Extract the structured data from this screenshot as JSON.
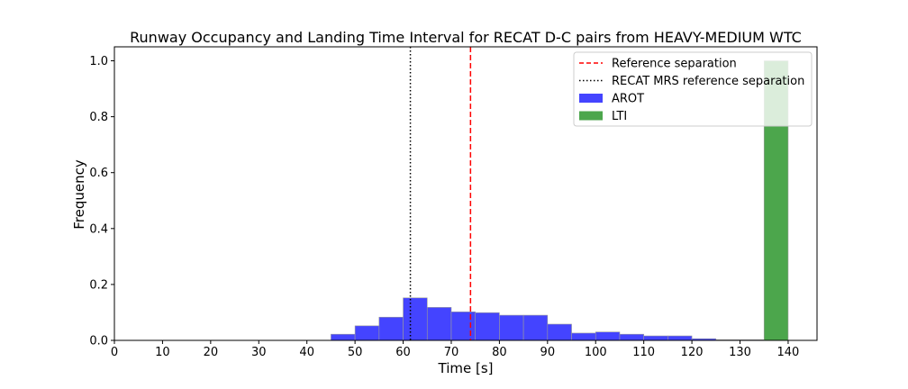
{
  "chart_data": {
    "type": "bar",
    "title": "Runway Occupancy and Landing Time Interval for RECAT D-C pairs from HEAVY-MEDIUM WTC",
    "xlabel": "Time [s]",
    "ylabel": "Frequency",
    "xlim": [
      0,
      146
    ],
    "ylim": [
      0,
      1.05
    ],
    "xticks": [
      0,
      10,
      20,
      30,
      40,
      50,
      60,
      70,
      80,
      90,
      100,
      110,
      120,
      130,
      140
    ],
    "yticks": [
      0.0,
      0.2,
      0.4,
      0.6,
      0.8,
      1.0
    ],
    "xtick_labels": [
      "0",
      "10",
      "20",
      "30",
      "40",
      "50",
      "60",
      "70",
      "80",
      "90",
      "100",
      "110",
      "120",
      "130",
      "140"
    ],
    "ytick_labels": [
      "0.0",
      "0.2",
      "0.4",
      "0.6",
      "0.8",
      "1.0"
    ],
    "grid": false,
    "legend_placement": "top-right",
    "series": [
      {
        "name": "AROT",
        "color": "#4444ff",
        "bin_width": 5,
        "bin_starts": [
          45,
          50,
          55,
          60,
          65,
          70,
          75,
          80,
          85,
          90,
          95,
          100,
          105,
          110,
          115,
          120,
          125,
          130
        ],
        "values": [
          0.022,
          0.052,
          0.083,
          0.152,
          0.118,
          0.102,
          0.099,
          0.09,
          0.09,
          0.058,
          0.026,
          0.03,
          0.022,
          0.016,
          0.016,
          0.006,
          0.002,
          0.002
        ]
      },
      {
        "name": "LTI",
        "color": "#4ca64c",
        "bin_width": 5,
        "bin_starts": [
          135
        ],
        "values": [
          1.0
        ]
      }
    ],
    "reference_lines": [
      {
        "name": "Reference separation",
        "x": 74,
        "color": "#ff0000",
        "style": "dashed"
      },
      {
        "name": "RECAT MRS reference separation",
        "x": 61.5,
        "color": "#000000",
        "style": "dotted"
      }
    ]
  }
}
